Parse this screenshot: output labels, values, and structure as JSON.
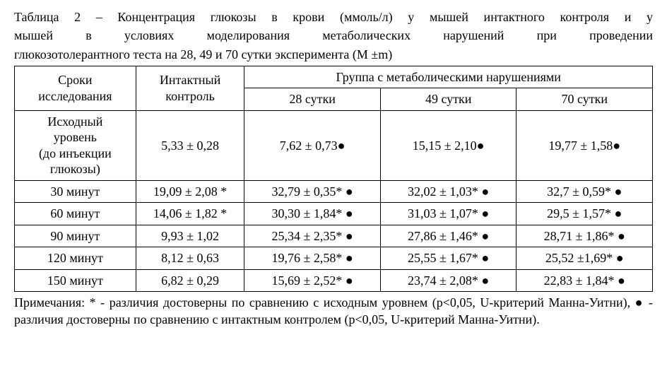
{
  "caption": {
    "line1": "Таблица 2 – Концентрация глюкозы в крови (ммоль/л) у мышей интактного контроля и у",
    "line2": "мышей в условиях моделирования метаболических нарушений при проведении",
    "line3": "глюкозотолерантного теста на 28, 49 и 70 сутки эксперимента (M ±m)"
  },
  "headers": {
    "col0_line1": "Сроки",
    "col0_line2": "исследования",
    "col1_line1": "Интактный",
    "col1_line2": "контроль",
    "group_span": "Группа с метаболическими нарушениями",
    "sub1": "28 сутки",
    "sub2": "49 сутки",
    "sub3": "70 сутки"
  },
  "rows": {
    "r0": {
      "label_l1": "Исходный",
      "label_l2": "уровень",
      "label_l3": "(до инъекции",
      "label_l4": "глюкозы)",
      "c1": "5,33 ± 0,28",
      "c2": "7,62 ± 0,73●",
      "c3": "15,15 ± 2,10●",
      "c4": "19,77 ± 1,58●"
    },
    "r1": {
      "label": "30 минут",
      "c1": "19,09 ± 2,08 *",
      "c2": "32,79 ± 0,35* ●",
      "c3": "32,02 ± 1,03* ●",
      "c4": "32,7 ± 0,59* ●"
    },
    "r2": {
      "label": "60 минут",
      "c1": "14,06 ± 1,82 *",
      "c2": "30,30 ± 1,84* ●",
      "c3": "31,03 ± 1,07* ●",
      "c4": "29,5 ± 1,57* ●"
    },
    "r3": {
      "label": "90 минут",
      "c1": "9,93 ± 1,02",
      "c2": "25,34 ± 2,35* ●",
      "c3": "27,86 ± 1,46* ●",
      "c4": "28,71 ± 1,86* ●"
    },
    "r4": {
      "label": "120 минут",
      "c1": "8,12 ± 0,63",
      "c2": "19,76 ± 2,58* ●",
      "c3": "25,55 ± 1,67* ●",
      "c4": "25,52 ±1,69* ●"
    },
    "r5": {
      "label": "150 минут",
      "c1": "6,82 ± 0,29",
      "c2": "15,69 ± 2,52* ●",
      "c3": "23,74 ± 2,08* ●",
      "c4": "22,83 ±  1,84* ●"
    }
  },
  "notes": "Примечания: * - различия достоверны по сравнению с исходным уровнем (p<0,05, U-критерий Манна-Уитни), ● - различия достоверны по сравнению с интактным контролем (p<0,05, U-критерий Манна-Уитни).",
  "style": {
    "font_family": "Times New Roman",
    "font_size_pt": 14,
    "text_color": "#000000",
    "background_color": "#ffffff",
    "border_color": "#000000",
    "col_widths_pct": [
      19,
      17,
      21.3,
      21.3,
      21.3
    ]
  }
}
